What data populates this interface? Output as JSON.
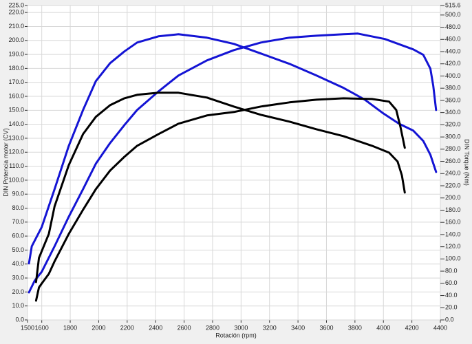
{
  "chart_data": {
    "type": "line",
    "x_label": "Rotación (rpm)",
    "y_label": "DIN Potencia motor (CV)",
    "y2_label": "DIN Torque (Nm)",
    "grid": true,
    "xlim": [
      1500,
      4400
    ],
    "xticks": [
      1500,
      1600,
      1800,
      2000,
      2200,
      2400,
      2600,
      2800,
      3000,
      3200,
      3400,
      3600,
      3800,
      4000,
      4200,
      4400
    ],
    "ylim": [
      0,
      225
    ],
    "yticks": [
      {
        "value": 0,
        "label": "0.0"
      },
      {
        "value": 10,
        "label": "10.0"
      },
      {
        "value": 20,
        "label": "20.0"
      },
      {
        "value": 30,
        "label": "30.0"
      },
      {
        "value": 40,
        "label": "40.0"
      },
      {
        "value": 50,
        "label": "50.0"
      },
      {
        "value": 60,
        "label": "60.0"
      },
      {
        "value": 70,
        "label": "70.0"
      },
      {
        "value": 80,
        "label": "80.0"
      },
      {
        "value": 90,
        "label": "90.0"
      },
      {
        "value": 100,
        "label": "100.0"
      },
      {
        "value": 110,
        "label": "110.0"
      },
      {
        "value": 120,
        "label": "120.0"
      },
      {
        "value": 130,
        "label": "130.0"
      },
      {
        "value": 140,
        "label": "140.0"
      },
      {
        "value": 150,
        "label": "150.0"
      },
      {
        "value": 160,
        "label": "160.0"
      },
      {
        "value": 170,
        "label": "170.0"
      },
      {
        "value": 180,
        "label": "180.0"
      },
      {
        "value": 190,
        "label": "190.0"
      },
      {
        "value": 200,
        "label": "200.0"
      },
      {
        "value": 210,
        "label": "210.0"
      },
      {
        "value": 220,
        "label": "220.0"
      },
      {
        "value": 225,
        "label": "225.0"
      }
    ],
    "y2lim": [
      0,
      515.6
    ],
    "y2ticks": [
      {
        "value": 0,
        "label": "0.0"
      },
      {
        "value": 20,
        "label": "20.0"
      },
      {
        "value": 40,
        "label": "40.0"
      },
      {
        "value": 60,
        "label": "60.0"
      },
      {
        "value": 80,
        "label": "80.0"
      },
      {
        "value": 100,
        "label": "100.0"
      },
      {
        "value": 120,
        "label": "120.0"
      },
      {
        "value": 140,
        "label": "140.0"
      },
      {
        "value": 160,
        "label": "160.0"
      },
      {
        "value": 180,
        "label": "180.0"
      },
      {
        "value": 200,
        "label": "200.0"
      },
      {
        "value": 220,
        "label": "220.0"
      },
      {
        "value": 240,
        "label": "240.0"
      },
      {
        "value": 260,
        "label": "260.0"
      },
      {
        "value": 280,
        "label": "280.0"
      },
      {
        "value": 300,
        "label": "300.0"
      },
      {
        "value": 320,
        "label": "320.0"
      },
      {
        "value": 340,
        "label": "340.0"
      },
      {
        "value": 360,
        "label": "360.0"
      },
      {
        "value": 380,
        "label": "380.0"
      },
      {
        "value": 400,
        "label": "400.0"
      },
      {
        "value": 420,
        "label": "420.0"
      },
      {
        "value": 440,
        "label": "440.0"
      },
      {
        "value": 460,
        "label": "460.0"
      },
      {
        "value": 480,
        "label": "480.0"
      },
      {
        "value": 500,
        "label": "500.0"
      },
      515.6
    ],
    "series": [
      {
        "color": "#1414d4",
        "axis": "y",
        "x": [
          1510,
          1550,
          1600,
          1690,
          1790,
          1890,
          1980,
          2080,
          2180,
          2270,
          2420,
          2560,
          2760,
          2950,
          3140,
          3340,
          3530,
          3720,
          3820,
          4010,
          4210,
          4280,
          4330,
          4350,
          4370
        ],
        "values": [
          19.7,
          28,
          34.5,
          52.7,
          73.9,
          93.6,
          111.8,
          126.6,
          139.4,
          150.2,
          163.5,
          174.9,
          185.7,
          193.1,
          198.5,
          202,
          203.4,
          204.4,
          204.9,
          201,
          193.6,
          189.7,
          179.8,
          167.5,
          150.2
        ]
      },
      {
        "color": "#1414d4",
        "axis": "y2",
        "x": [
          1510,
          1530,
          1600,
          1690,
          1790,
          1890,
          1980,
          2080,
          2180,
          2270,
          2420,
          2560,
          2760,
          2950,
          3140,
          3340,
          3530,
          3720,
          3870,
          4000,
          4110,
          4210,
          4280,
          4330,
          4370
        ],
        "values": [
          92.6,
          120.8,
          152.4,
          214.4,
          285.6,
          344.2,
          391.6,
          421,
          440.2,
          454.9,
          465,
          468.4,
          462.8,
          452.6,
          436.8,
          419.9,
          400.7,
          380.4,
          361.2,
          338.6,
          321.7,
          310.4,
          293.5,
          270.9,
          242.7
        ]
      },
      {
        "color": "#000000",
        "axis": "y",
        "x": [
          1560,
          1580,
          1600,
          1650,
          1690,
          1790,
          1890,
          1980,
          2080,
          2180,
          2270,
          2420,
          2560,
          2760,
          2950,
          3140,
          3340,
          3530,
          3720,
          3920,
          4040,
          4090,
          4120,
          4150
        ],
        "values": [
          13.8,
          23.2,
          26.1,
          33,
          41.9,
          61.6,
          78.8,
          93.6,
          106.9,
          116.7,
          124.6,
          133,
          140.4,
          146.3,
          148.8,
          152.7,
          155.7,
          157.6,
          158.6,
          158.1,
          156.2,
          150.2,
          137.9,
          123.2
        ]
      },
      {
        "color": "#000000",
        "axis": "y2",
        "x": [
          1560,
          1580,
          1600,
          1650,
          1690,
          1790,
          1890,
          1980,
          2080,
          2180,
          2270,
          2420,
          2560,
          2760,
          2950,
          3140,
          3340,
          3530,
          3720,
          3920,
          4040,
          4100,
          4130,
          4150
        ],
        "values": [
          62.1,
          101.6,
          112.9,
          141.1,
          186.2,
          254,
          304.7,
          333,
          352.1,
          363.4,
          369.1,
          372.5,
          372.5,
          364.6,
          349.9,
          336.3,
          325.1,
          312.6,
          301.4,
          285.6,
          274.3,
          259.6,
          237,
          208.8
        ]
      }
    ]
  }
}
